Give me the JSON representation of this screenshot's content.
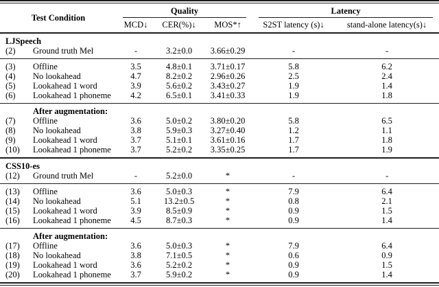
{
  "colors": {
    "background": "#ffffff",
    "text": "#000000",
    "rule": "#1c1c1c"
  },
  "table": {
    "header": {
      "test_condition_label": "Test Condition",
      "quality_group_label": "Quality",
      "latency_group_label": "Latency",
      "sub_columns": [
        "MCD↓",
        "CER(%)↓",
        "MOS*↑",
        "S2ST latency (s)↓",
        "stand-alone latency(s)↓"
      ]
    },
    "sections": [
      {
        "name": "LJSpeech",
        "blocks": [
          {
            "subtitle": null,
            "rows": [
              [
                "(2)",
                "Ground truth Mel",
                "-",
                "3.2±0.0",
                "3.66±0.29",
                "-",
                "-"
              ]
            ]
          },
          {
            "subtitle": null,
            "rows": [
              [
                "(3)",
                "Offline",
                "3.5",
                "4.8±0.1",
                "3.71±0.17",
                "5.8",
                "6.2"
              ],
              [
                "(4)",
                "No lookahead",
                "4.7",
                "8.2±0.2",
                "2.96±0.26",
                "2.5",
                "2.4"
              ],
              [
                "(5)",
                "Lookahead 1 word",
                "3.9",
                "5.6±0.2",
                "3.43±0.27",
                "1.9",
                "1.4"
              ],
              [
                "(6)",
                "Lookahead 1 phoneme",
                "4.2",
                "6.5±0.1",
                "3.41±0.33",
                "1.9",
                "1.8"
              ]
            ]
          },
          {
            "subtitle": "After augmentation:",
            "rows": [
              [
                "(7)",
                "Offline",
                "3.6",
                "5.0±0.2",
                "3.80±0.20",
                "5.8",
                "6.5"
              ],
              [
                "(8)",
                "No lookahead",
                "3.8",
                "5.9±0.3",
                "3.27±0.40",
                "1.2",
                "1.1"
              ],
              [
                "(9)",
                "Lookahead 1 word",
                "3.7",
                "5.1±0.1",
                "3.61±0.16",
                "1.7",
                "1.8"
              ],
              [
                "(10)",
                "Lookahead 1 phoneme",
                "3.7",
                "5.2±0.2",
                "3.35±0.25",
                "1.7",
                "1.9"
              ]
            ]
          }
        ]
      },
      {
        "name": "CSS10-es",
        "blocks": [
          {
            "subtitle": null,
            "rows": [
              [
                "(12)",
                "Ground truth Mel",
                "-",
                "5.2±0.0",
                "*",
                "-",
                "-"
              ]
            ]
          },
          {
            "subtitle": null,
            "rows": [
              [
                "(13)",
                "Offline",
                "3.6",
                "5.0±0.3",
                "*",
                "7.9",
                "6.4"
              ],
              [
                "(14)",
                "No lookahead",
                "5.1",
                "13.2±0.5",
                "*",
                "0.8",
                "2.1"
              ],
              [
                "(15)",
                "Lookahead 1 word",
                "3.9",
                "8.5±0.9",
                "*",
                "0.9",
                "1.5"
              ],
              [
                "(16)",
                "Lookahead 1 phoneme",
                "4.5",
                "8.7±0.3",
                "*",
                "0.9",
                "1.4"
              ]
            ]
          },
          {
            "subtitle": "After augmentation:",
            "rows": [
              [
                "(17)",
                "Offline",
                "3.6",
                "5.0±0.3",
                "*",
                "7.9",
                "6.4"
              ],
              [
                "(18)",
                "No lookahead",
                "3.8",
                "7.1±0.5",
                "*",
                "0.6",
                "0.9"
              ],
              [
                "(19)",
                "Lookahead 1 word",
                "3.6",
                "5.2±0.2",
                "*",
                "0.9",
                "1.5"
              ],
              [
                "(20)",
                "Lookahead 1 phoneme",
                "3.7",
                "5.9±0.2",
                "*",
                "0.9",
                "1.4"
              ]
            ]
          }
        ]
      }
    ]
  }
}
